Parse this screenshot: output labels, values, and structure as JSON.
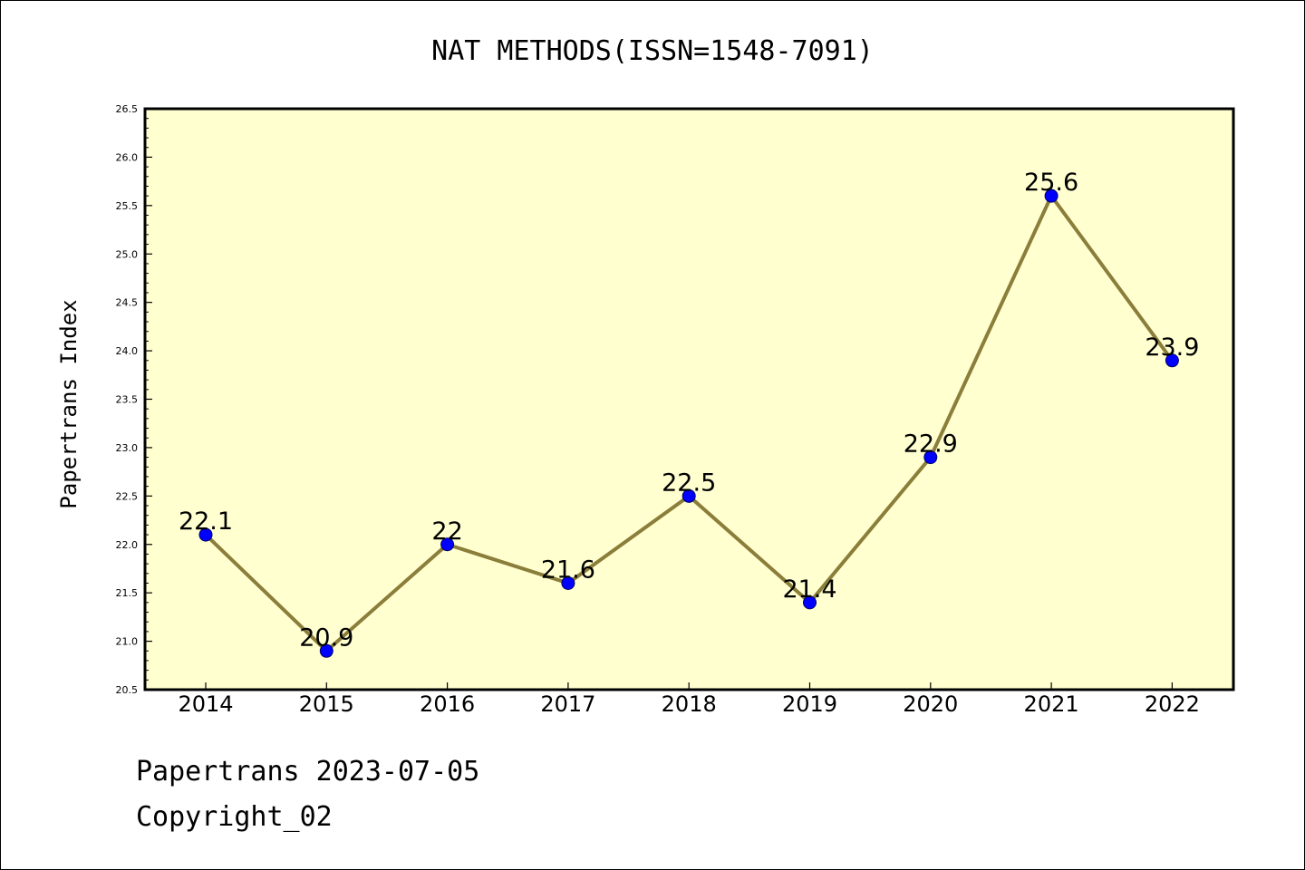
{
  "chart_data": {
    "type": "line",
    "title": "NAT METHODS(ISSN=1548-7091)",
    "xlabel": "",
    "ylabel": "Papertrans Index",
    "categories": [
      "2014",
      "2015",
      "2016",
      "2017",
      "2018",
      "2019",
      "2020",
      "2021",
      "2022"
    ],
    "values": [
      22.1,
      20.9,
      22,
      21.6,
      22.5,
      21.4,
      22.9,
      25.6,
      23.9
    ],
    "data_labels": [
      "22.1",
      "20.9",
      "22",
      "21.6",
      "22.5",
      "21.4",
      "22.9",
      "25.6",
      "23.9"
    ],
    "ylim": [
      20.5,
      26.5
    ],
    "yticks": [
      "20.5",
      "21.0",
      "21.5",
      "22.0",
      "22.5",
      "23.0",
      "23.5",
      "24.0",
      "24.5",
      "25.0",
      "25.5",
      "26.0",
      "26.5"
    ],
    "grid": false,
    "legend": "none",
    "colors": {
      "plot_background": "#ffffd0",
      "line": "#8b7d3a",
      "marker": "#0000ff",
      "axes": "#000000"
    }
  },
  "footer": {
    "line1": "Papertrans 2023-07-05",
    "line2": "Copyright_02"
  }
}
